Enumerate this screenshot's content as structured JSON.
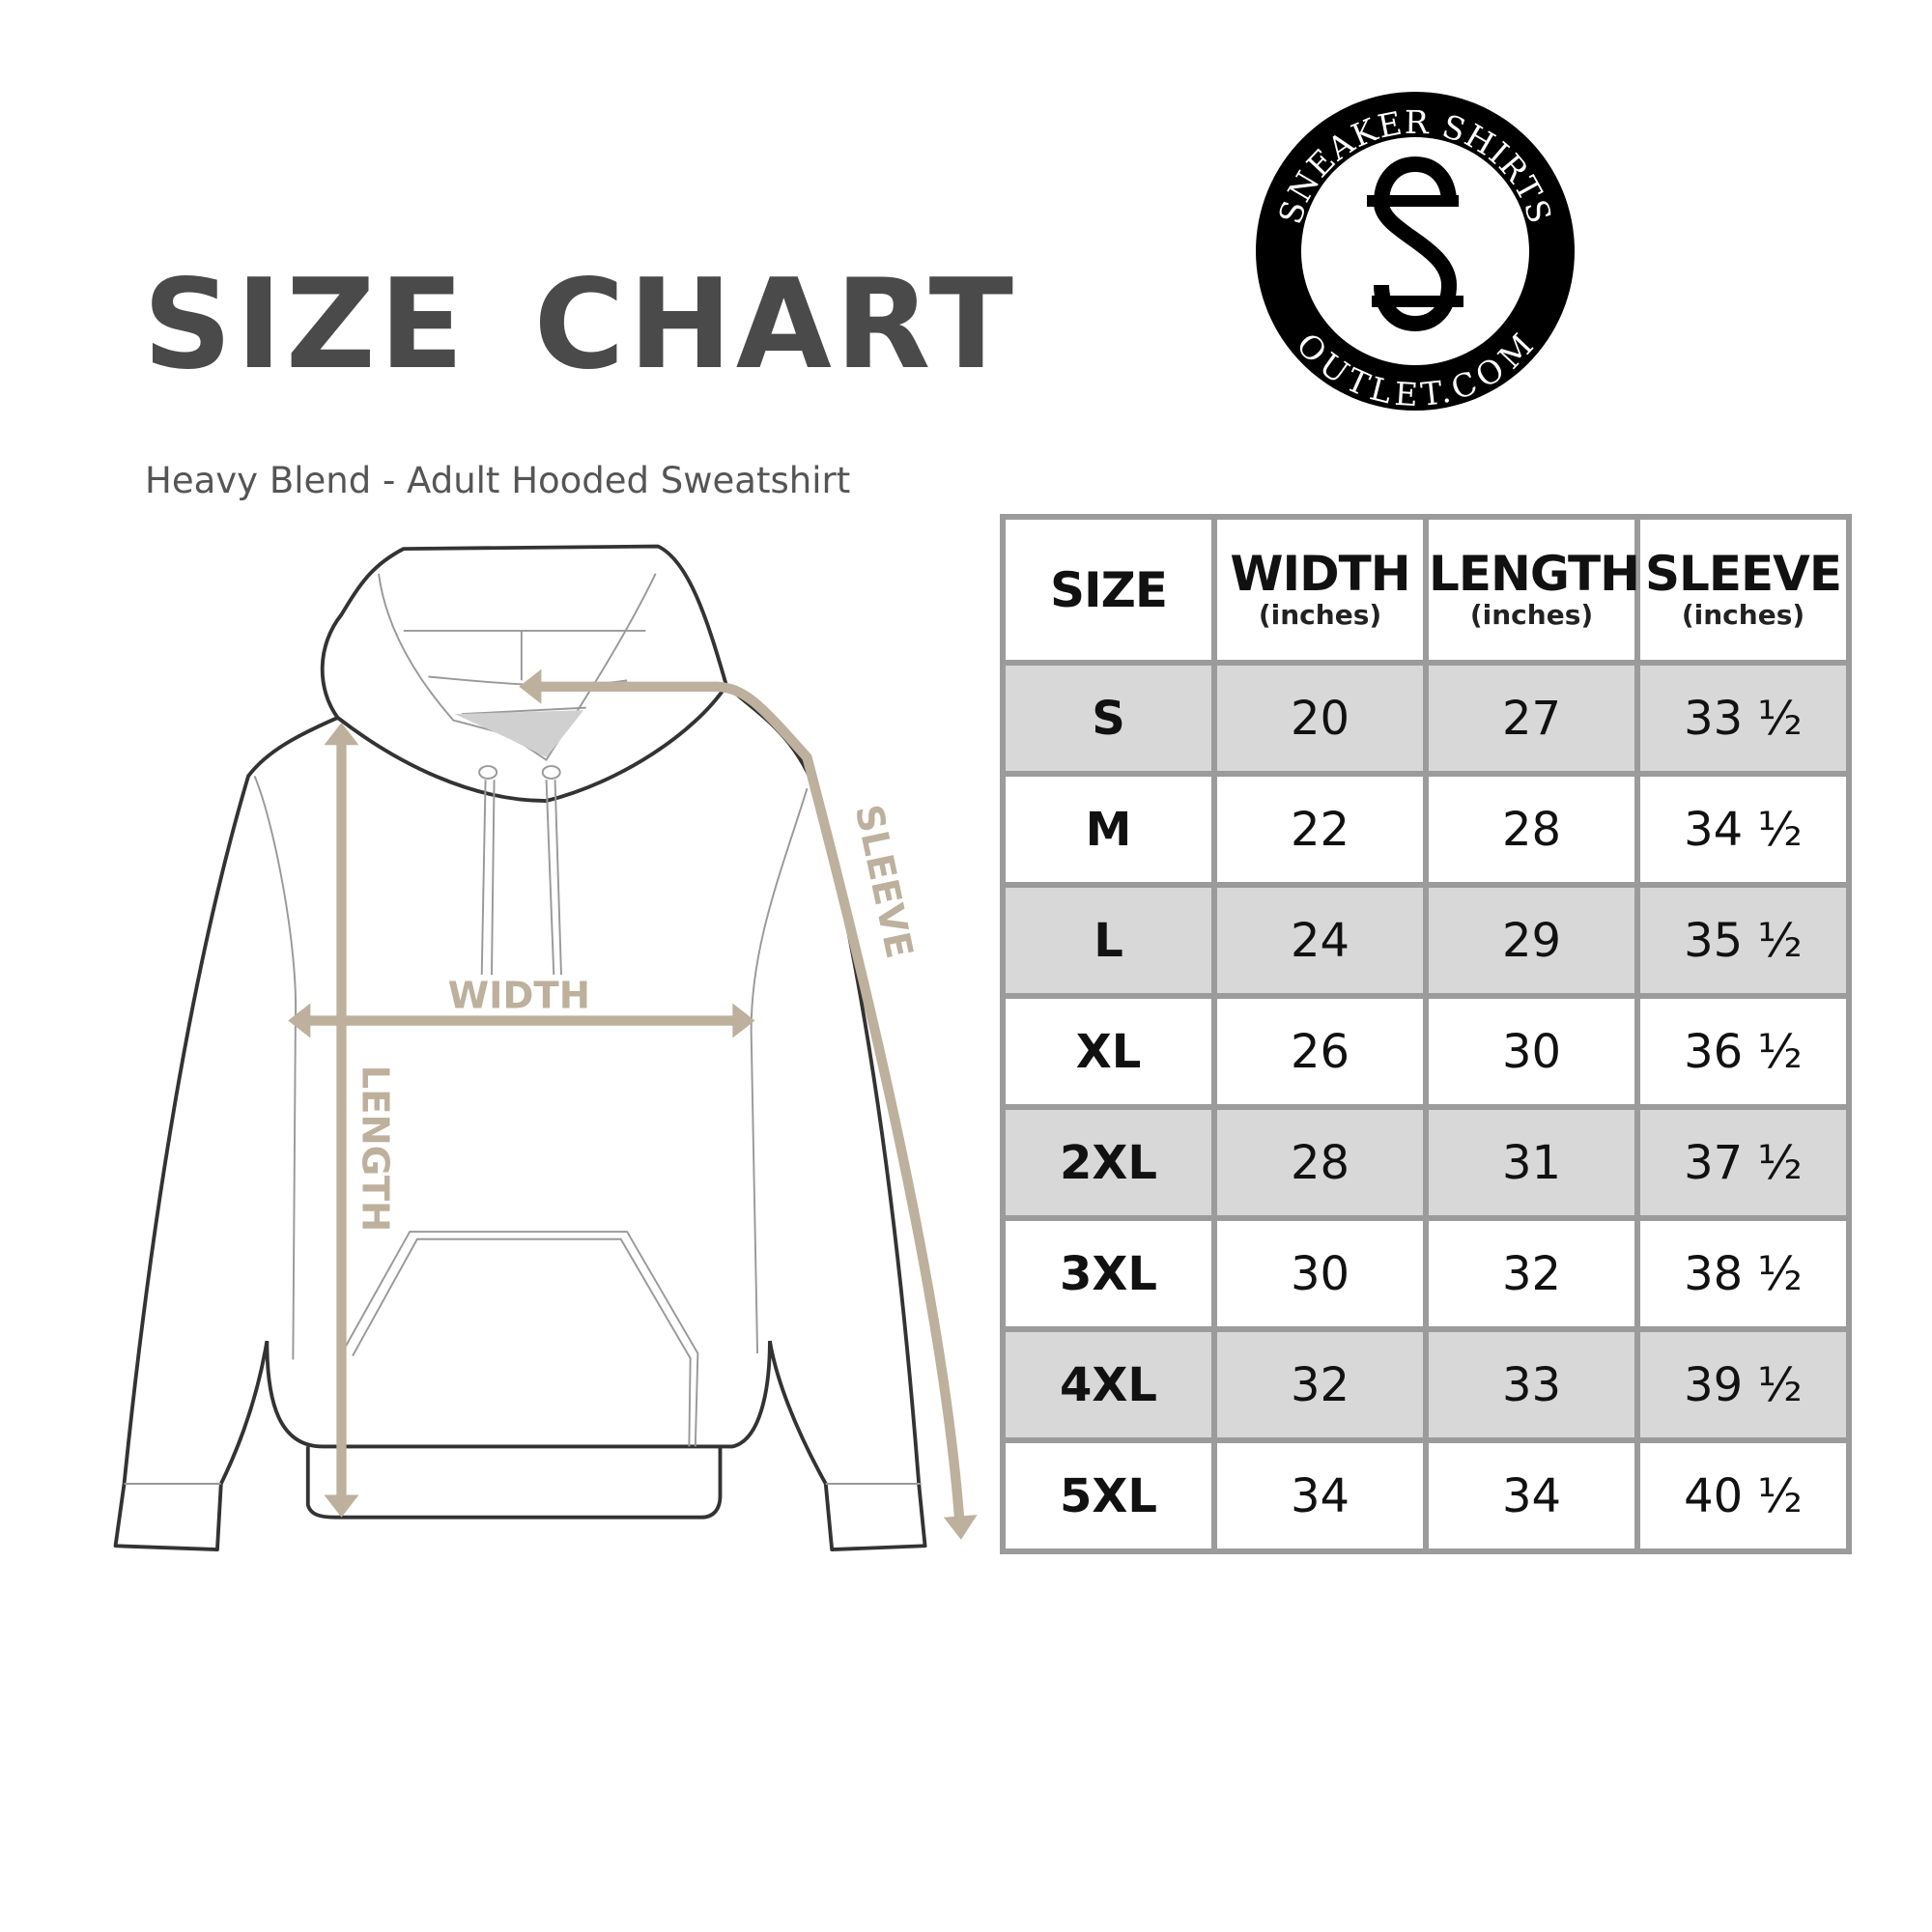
{
  "title": "SIZE CHART",
  "subtitle": "Heavy Blend - Adult Hooded Sweatshirt",
  "logo": {
    "top_text": "SNEAKER SHIRTS",
    "bottom_text": "OUTLET.COM",
    "monogram": "SS"
  },
  "diagram": {
    "labels": {
      "width": "WIDTH",
      "length": "LENGTH",
      "sleeve": "SLEEVE"
    },
    "arrow_color": "#bdb09c"
  },
  "table": {
    "headers": [
      {
        "label": "SIZE",
        "unit": ""
      },
      {
        "label": "WIDTH",
        "unit": "(inches)"
      },
      {
        "label": "LENGTH",
        "unit": "(inches)"
      },
      {
        "label": "SLEEVE",
        "unit": "(inches)"
      }
    ],
    "rows": [
      [
        "S",
        "20",
        "27",
        "33 ½"
      ],
      [
        "M",
        "22",
        "28",
        "34 ½"
      ],
      [
        "L",
        "24",
        "29",
        "35 ½"
      ],
      [
        "XL",
        "26",
        "30",
        "36 ½"
      ],
      [
        "2XL",
        "28",
        "31",
        "37 ½"
      ],
      [
        "3XL",
        "30",
        "32",
        "38 ½"
      ],
      [
        "4XL",
        "32",
        "33",
        "39 ½"
      ],
      [
        "5XL",
        "34",
        "34",
        "40 ½"
      ]
    ],
    "shade_color": "#d8d8d8",
    "border_color": "#9b9b9b"
  }
}
